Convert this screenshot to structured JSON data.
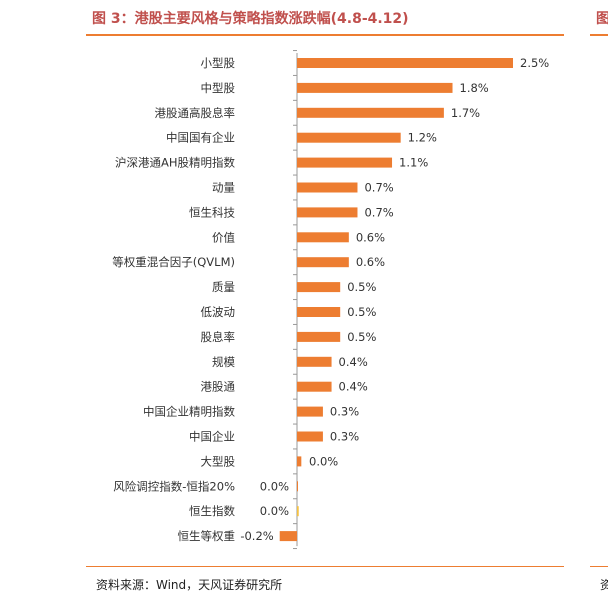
{
  "header": {
    "title": "图 3：港股主要风格与策略指数涨跌幅(4.8-4.12)",
    "right_fragment": "图"
  },
  "footer": {
    "source": "资料来源：Wind，天风证券研究所",
    "right_fragment": "资"
  },
  "colors": {
    "bar": "#ed7d31",
    "bar_zero_highlight": "#f5c242",
    "title": "#c0504d",
    "rule": "#ed7d31",
    "axis": "#999999",
    "text": "#333333"
  },
  "chart_data": {
    "type": "bar",
    "orientation": "horizontal",
    "categories": [
      "小型股",
      "中型股",
      "港股通高股息率",
      "中国国有企业",
      "沪深港通AH股精明指数",
      "动量",
      "恒生科技",
      "价值",
      "等权重混合因子(QVLM)",
      "质量",
      "低波动",
      "股息率",
      "规模",
      "港股通",
      "中国企业精明指数",
      "中国企业",
      "大型股",
      "风险调控指数-恒指20%",
      "恒生指数",
      "恒生等权重"
    ],
    "values": [
      2.5,
      1.8,
      1.7,
      1.2,
      1.1,
      0.7,
      0.7,
      0.6,
      0.6,
      0.5,
      0.5,
      0.5,
      0.4,
      0.4,
      0.3,
      0.3,
      0.05,
      0.0,
      0.02,
      -0.2
    ],
    "labels": [
      "2.5%",
      "1.8%",
      "1.7%",
      "1.2%",
      "1.1%",
      "0.7%",
      "0.7%",
      "0.6%",
      "0.6%",
      "0.5%",
      "0.5%",
      "0.5%",
      "0.4%",
      "0.4%",
      "0.3%",
      "0.3%",
      "0.0%",
      "0.0%",
      "0.0%",
      "-0.2%"
    ],
    "xlim": [
      -0.2,
      2.5
    ],
    "grid": false,
    "legend": "none"
  }
}
